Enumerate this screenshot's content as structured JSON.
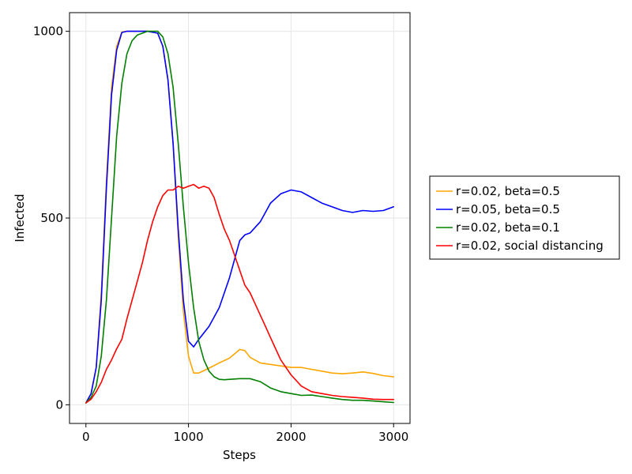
{
  "chart_data": {
    "type": "line",
    "title": "",
    "xlabel": "Steps",
    "ylabel": "Infected",
    "xlim": [
      -160,
      3160
    ],
    "ylim": [
      -50,
      1050
    ],
    "xticks": [
      0,
      1000,
      2000,
      3000
    ],
    "yticks": [
      0,
      500,
      1000
    ],
    "xtick_labels": [
      "0",
      "1000",
      "2000",
      "3000"
    ],
    "ytick_labels": [
      "0",
      "500",
      "1000"
    ],
    "grid": true,
    "legend_position": "right",
    "series": [
      {
        "name": "r=0.02, beta=0.5",
        "color": "#FFA500",
        "x": [
          0,
          50,
          100,
          150,
          200,
          250,
          300,
          350,
          400,
          500,
          600,
          700,
          750,
          800,
          850,
          900,
          950,
          1000,
          1050,
          1100,
          1200,
          1300,
          1400,
          1500,
          1550,
          1600,
          1700,
          1800,
          1900,
          2000,
          2100,
          2200,
          2300,
          2400,
          2500,
          2600,
          2700,
          2800,
          2900,
          3000
        ],
        "y": [
          5,
          30,
          100,
          300,
          600,
          850,
          960,
          998,
          1000,
          1000,
          1000,
          995,
          960,
          870,
          700,
          450,
          250,
          130,
          85,
          85,
          98,
          112,
          125,
          148,
          145,
          127,
          112,
          108,
          104,
          100,
          100,
          95,
          90,
          85,
          83,
          85,
          88,
          84,
          78,
          75
        ]
      },
      {
        "name": "r=0.05, beta=0.5",
        "color": "#0000FF",
        "x": [
          0,
          50,
          100,
          150,
          200,
          250,
          300,
          350,
          400,
          500,
          600,
          700,
          750,
          800,
          850,
          900,
          950,
          1000,
          1050,
          1100,
          1200,
          1300,
          1400,
          1450,
          1500,
          1550,
          1600,
          1700,
          1800,
          1900,
          2000,
          2100,
          2200,
          2300,
          2400,
          2500,
          2600,
          2700,
          2800,
          2900,
          3000
        ],
        "y": [
          5,
          30,
          100,
          280,
          580,
          830,
          950,
          997,
          1000,
          1000,
          1000,
          995,
          960,
          870,
          700,
          470,
          280,
          170,
          155,
          175,
          210,
          260,
          340,
          390,
          440,
          455,
          460,
          490,
          540,
          565,
          575,
          570,
          555,
          540,
          530,
          520,
          515,
          520,
          518,
          520,
          530
        ]
      },
      {
        "name": "r=0.02, beta=0.1",
        "color": "#008000",
        "x": [
          0,
          50,
          100,
          150,
          200,
          250,
          300,
          350,
          400,
          450,
          500,
          600,
          700,
          750,
          800,
          850,
          900,
          950,
          1000,
          1050,
          1100,
          1150,
          1200,
          1250,
          1300,
          1350,
          1400,
          1500,
          1600,
          1700,
          1800,
          1900,
          2000,
          2100,
          2200,
          2300,
          2400,
          2500,
          2600,
          2700,
          2800,
          2900,
          3000
        ],
        "y": [
          5,
          20,
          50,
          130,
          280,
          500,
          720,
          860,
          940,
          975,
          990,
          1000,
          1000,
          985,
          940,
          850,
          700,
          530,
          380,
          260,
          170,
          120,
          90,
          75,
          68,
          67,
          68,
          70,
          70,
          62,
          45,
          35,
          30,
          25,
          26,
          22,
          18,
          14,
          12,
          12,
          10,
          8,
          6
        ]
      },
      {
        "name": "r=0.02, social distancing",
        "color": "#FF0000",
        "x": [
          0,
          50,
          100,
          150,
          200,
          250,
          300,
          350,
          400,
          450,
          500,
          550,
          600,
          650,
          700,
          750,
          800,
          850,
          900,
          950,
          1000,
          1050,
          1100,
          1150,
          1200,
          1250,
          1300,
          1350,
          1400,
          1450,
          1500,
          1550,
          1600,
          1650,
          1700,
          1750,
          1800,
          1850,
          1900,
          1950,
          2000,
          2100,
          2200,
          2300,
          2400,
          2500,
          2600,
          2700,
          2800,
          2900,
          3000
        ],
        "y": [
          5,
          15,
          35,
          60,
          95,
          120,
          150,
          175,
          230,
          280,
          330,
          380,
          440,
          490,
          530,
          560,
          575,
          575,
          585,
          580,
          585,
          590,
          580,
          585,
          580,
          555,
          510,
          470,
          440,
          400,
          360,
          320,
          300,
          270,
          240,
          210,
          180,
          150,
          120,
          100,
          80,
          50,
          35,
          30,
          25,
          22,
          20,
          18,
          15,
          14,
          14
        ]
      }
    ]
  }
}
